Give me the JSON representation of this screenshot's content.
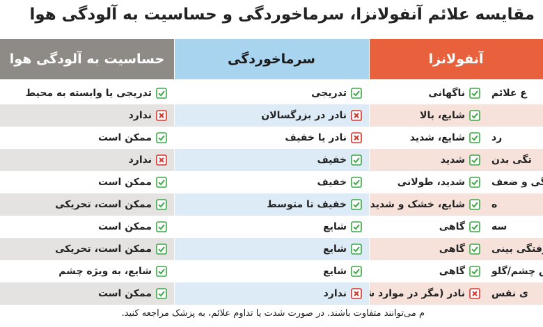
{
  "title": "مقایسه علائم آنفولانزا، سرماخوردگی و حساسیت به آلودگی هوا",
  "columns": [
    "آنفولانزا",
    "سرماخوردگی",
    "حساسیت به آلودگی هوا"
  ],
  "rows": [
    {
      "label": "ع علائم",
      "cells": [
        {
          "mark": "check",
          "text": "ناگهانی"
        },
        {
          "mark": "check",
          "text": "تدریجی"
        },
        {
          "mark": "check",
          "text": "تدریجی یا وابسته به محیط"
        }
      ]
    },
    {
      "label": null,
      "cells": [
        {
          "mark": "check",
          "text": "شایع، بالا"
        },
        {
          "mark": "cross",
          "text": "نادر در بزرگسالان"
        },
        {
          "mark": "cross",
          "text": "ندارد"
        }
      ]
    },
    {
      "label": "رد",
      "cells": [
        {
          "mark": "check",
          "text": "شایع، شدید"
        },
        {
          "mark": "cross",
          "text": "نادر یا خفیف"
        },
        {
          "mark": "check",
          "text": "ممکن است"
        }
      ]
    },
    {
      "label": "تگی بدن",
      "cells": [
        {
          "mark": "check",
          "text": "شدید"
        },
        {
          "mark": "check",
          "text": "خفیف"
        },
        {
          "mark": "cross",
          "text": "ندارد"
        }
      ]
    },
    {
      "label": "تگی و ضعف",
      "cells": [
        {
          "mark": "check",
          "text": "شدید، طولانی"
        },
        {
          "mark": "check",
          "text": "خفیف"
        },
        {
          "mark": "check",
          "text": "ممکن است"
        }
      ]
    },
    {
      "label": "ه",
      "cells": [
        {
          "mark": "check",
          "text": "شایع، خشک و شدید"
        },
        {
          "mark": "check",
          "text": "خفیف تا متوسط"
        },
        {
          "mark": "check",
          "text": "ممکن است، تحریکی"
        }
      ]
    },
    {
      "label": "سه",
      "cells": [
        {
          "mark": "check",
          "text": "گاهی"
        },
        {
          "mark": "check",
          "text": "شایع"
        },
        {
          "mark": "check",
          "text": "ممکن است"
        }
      ]
    },
    {
      "label": "ش/گرفتگی بینی",
      "cells": [
        {
          "mark": "check",
          "text": "گاهی"
        },
        {
          "mark": "check",
          "text": "شایع"
        },
        {
          "mark": "check",
          "text": "ممکن است، تحریکی"
        }
      ]
    },
    {
      "label": "ش چشم/گلو",
      "cells": [
        {
          "mark": "check",
          "text": "گاهی"
        },
        {
          "mark": "check",
          "text": "شایع"
        },
        {
          "mark": "check",
          "text": "شایع، به ویژه چشم"
        }
      ]
    },
    {
      "label": "ی نفس",
      "cells": [
        {
          "mark": "cross",
          "text": "نادر (مگر در موارد شدید)"
        },
        {
          "mark": "cross",
          "text": "ندارد"
        },
        {
          "mark": "check",
          "text": "ممکن است"
        }
      ]
    }
  ],
  "footer": "م می‌توانند متفاوت باشند. در صورت شدت یا تداوم علائم، به پزشک مراجعه کنید."
}
